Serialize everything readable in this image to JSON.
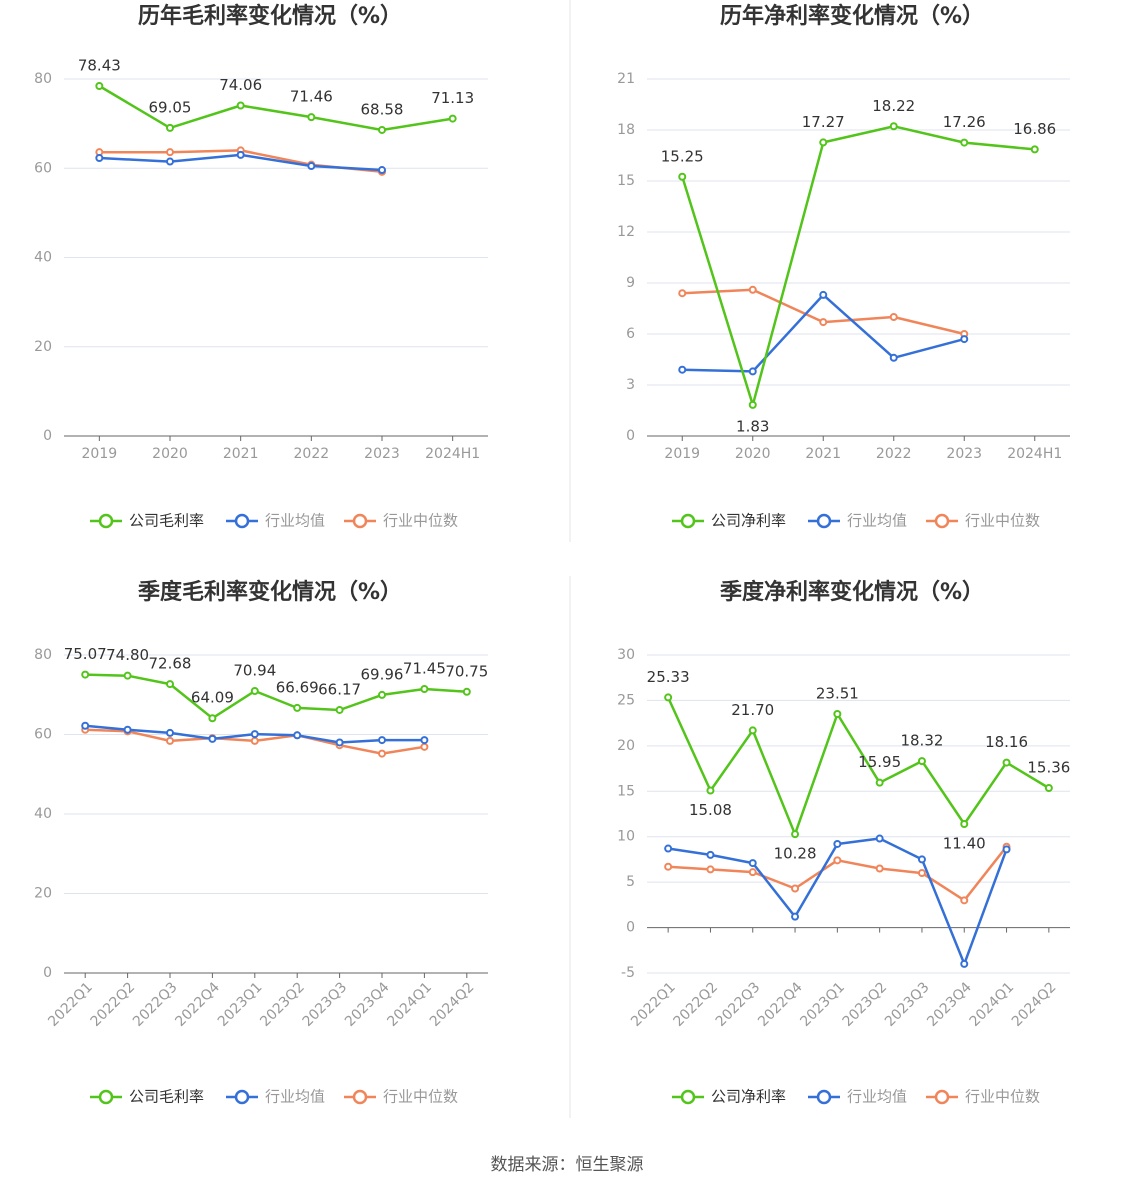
{
  "colors": {
    "company": "#52c41a",
    "industry_avg": "#3470d8",
    "industry_median": "#f0855a",
    "grid": "#dfe3ee",
    "axis": "#666666",
    "text": "#333333",
    "tick": "#999999",
    "divider": "#e5e5e5"
  },
  "icons": {
    "legend_marker": "circle-line-icon"
  },
  "source_note": "数据来源：恒生聚源",
  "chart_data": [
    {
      "id": "annual-gross",
      "type": "line",
      "title": "历年毛利率变化情况（%）",
      "categories": [
        "2019",
        "2020",
        "2021",
        "2022",
        "2023",
        "2024H1"
      ],
      "ylim": [
        0,
        80
      ],
      "yticks": [
        0,
        20,
        40,
        60,
        80
      ],
      "grid": true,
      "legend_position": "bottom-center",
      "series": [
        {
          "name": "公司毛利率",
          "color_key": "company",
          "labels": true,
          "values": [
            78.43,
            69.05,
            74.06,
            71.46,
            68.58,
            71.13
          ]
        },
        {
          "name": "行业均值",
          "color_key": "industry_avg",
          "labels": false,
          "values": [
            62.3,
            61.5,
            63.0,
            60.5,
            59.6,
            null
          ]
        },
        {
          "name": "行业中位数",
          "color_key": "industry_median",
          "labels": false,
          "values": [
            63.6,
            63.6,
            64.0,
            60.8,
            59.2,
            null
          ]
        }
      ]
    },
    {
      "id": "annual-net",
      "type": "line",
      "title": "历年净利率变化情况（%）",
      "categories": [
        "2019",
        "2020",
        "2021",
        "2022",
        "2023",
        "2024H1"
      ],
      "ylim": [
        0,
        21
      ],
      "yticks": [
        0,
        3,
        6,
        9,
        12,
        15,
        18,
        21
      ],
      "grid": true,
      "legend_position": "bottom-center",
      "series": [
        {
          "name": "公司净利率",
          "color_key": "company",
          "labels": true,
          "values": [
            15.25,
            1.83,
            17.27,
            18.22,
            17.26,
            16.86
          ]
        },
        {
          "name": "行业均值",
          "color_key": "industry_avg",
          "labels": false,
          "values": [
            3.9,
            3.8,
            8.3,
            4.6,
            5.7,
            null
          ]
        },
        {
          "name": "行业中位数",
          "color_key": "industry_median",
          "labels": false,
          "values": [
            8.4,
            8.6,
            6.7,
            7.0,
            6.0,
            null
          ]
        }
      ]
    },
    {
      "id": "quarterly-gross",
      "type": "line",
      "title": "季度毛利率变化情况（%）",
      "categories": [
        "2022Q1",
        "2022Q2",
        "2022Q3",
        "2022Q4",
        "2023Q1",
        "2023Q2",
        "2023Q3",
        "2023Q4",
        "2024Q1",
        "2024Q2"
      ],
      "ylim": [
        0,
        80
      ],
      "yticks": [
        0,
        20,
        40,
        60,
        80
      ],
      "grid": true,
      "legend_position": "bottom-center",
      "series": [
        {
          "name": "公司毛利率",
          "color_key": "company",
          "labels": true,
          "values": [
            75.07,
            74.8,
            72.68,
            64.09,
            70.94,
            66.69,
            66.17,
            69.96,
            71.45,
            70.75
          ]
        },
        {
          "name": "行业均值",
          "color_key": "industry_avg",
          "labels": false,
          "values": [
            62.2,
            61.2,
            60.4,
            58.9,
            60.1,
            59.8,
            58.0,
            58.6,
            58.6,
            null
          ]
        },
        {
          "name": "行业中位数",
          "color_key": "industry_median",
          "labels": false,
          "values": [
            61.2,
            60.8,
            58.4,
            59.1,
            58.4,
            59.8,
            57.3,
            55.2,
            56.9,
            null
          ]
        }
      ]
    },
    {
      "id": "quarterly-net",
      "type": "line",
      "title": "季度净利率变化情况（%）",
      "categories": [
        "2022Q1",
        "2022Q2",
        "2022Q3",
        "2022Q4",
        "2023Q1",
        "2023Q2",
        "2023Q3",
        "2023Q4",
        "2024Q1",
        "2024Q2"
      ],
      "ylim": [
        -5,
        30
      ],
      "yticks": [
        -5,
        0,
        5,
        10,
        15,
        20,
        25,
        30
      ],
      "grid": true,
      "legend_position": "bottom-center",
      "series": [
        {
          "name": "公司净利率",
          "color_key": "company",
          "labels": true,
          "values": [
            25.33,
            15.08,
            21.7,
            10.28,
            23.51,
            15.95,
            18.32,
            11.4,
            18.16,
            15.36
          ]
        },
        {
          "name": "行业均值",
          "color_key": "industry_avg",
          "labels": false,
          "values": [
            8.7,
            8.0,
            7.1,
            1.2,
            9.2,
            9.8,
            7.5,
            -4.0,
            8.6,
            null
          ]
        },
        {
          "name": "行业中位数",
          "color_key": "industry_median",
          "labels": false,
          "values": [
            6.7,
            6.4,
            6.1,
            4.3,
            7.4,
            6.5,
            6.0,
            3.0,
            8.9,
            null
          ]
        }
      ]
    }
  ]
}
